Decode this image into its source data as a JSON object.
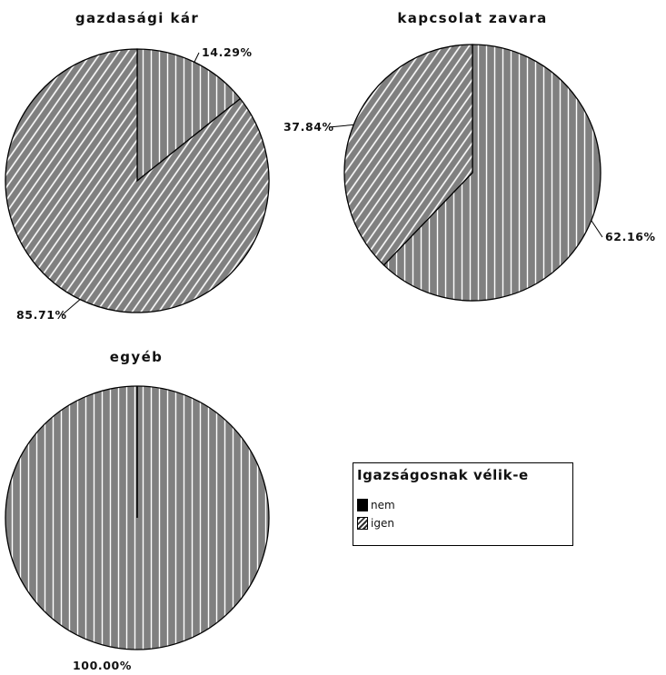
{
  "legend": {
    "title": "Igazságosnak vélik-e",
    "items": [
      {
        "label": "nem",
        "pattern": "solid",
        "color": "#000000"
      },
      {
        "label": "igen",
        "pattern": "diagonal-hatch",
        "color": "#808080"
      }
    ]
  },
  "colors": {
    "slice_fill": "#808080",
    "hatch_line": "#ffffff",
    "outline": "#000000"
  },
  "chart_data": [
    {
      "type": "pie",
      "title": "gazdasági kár",
      "slices": [
        {
          "category": "nem",
          "value": 14.29,
          "label": "14.29%",
          "pattern": "vertical-stripes"
        },
        {
          "category": "igen",
          "value": 85.71,
          "label": "85.71%",
          "pattern": "diagonal-hatch"
        }
      ]
    },
    {
      "type": "pie",
      "title": "kapcsolat zavara",
      "slices": [
        {
          "category": "nem",
          "value": 62.16,
          "label": "62.16%",
          "pattern": "vertical-stripes"
        },
        {
          "category": "igen",
          "value": 37.84,
          "label": "37.84%",
          "pattern": "diagonal-hatch"
        }
      ]
    },
    {
      "type": "pie",
      "title": "egyéb",
      "slices": [
        {
          "category": "nem",
          "value": 100.0,
          "label": "100.00%",
          "pattern": "vertical-stripes"
        }
      ]
    }
  ]
}
